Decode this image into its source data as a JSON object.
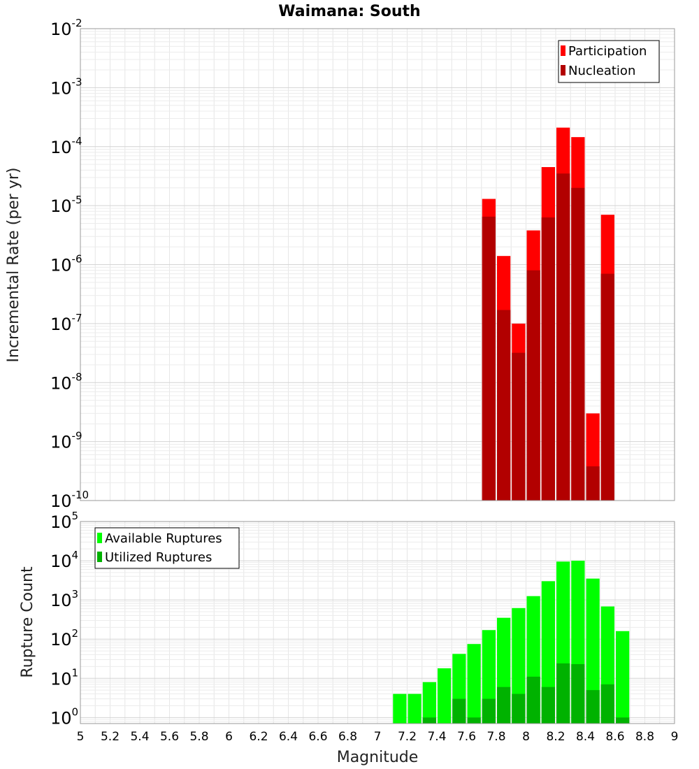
{
  "chart_data": [
    {
      "type": "bar",
      "title": "Waimana: South",
      "xlabel": "Magnitude",
      "ylabel": "Incremental Rate (per yr)",
      "x_log": false,
      "y_log": true,
      "xlim": [
        5,
        9
      ],
      "ylim": [
        1e-10,
        0.01
      ],
      "y_ticks": [
        {
          "base": "10",
          "exp": "-2"
        },
        {
          "base": "10",
          "exp": "-3"
        },
        {
          "base": "10",
          "exp": "-4"
        },
        {
          "base": "10",
          "exp": "-5"
        },
        {
          "base": "10",
          "exp": "-6"
        },
        {
          "base": "10",
          "exp": "-7"
        },
        {
          "base": "10",
          "exp": "-8"
        },
        {
          "base": "10",
          "exp": "-9"
        },
        {
          "base": "10",
          "exp": "-10"
        }
      ],
      "grid": true,
      "legend_position": "top-right",
      "bin_width": 0.1,
      "x": [
        7.75,
        7.85,
        7.95,
        8.05,
        8.15,
        8.25,
        8.35,
        8.45,
        8.55
      ],
      "series": [
        {
          "name": "Participation",
          "color": "#ff0000",
          "values": [
            1.3e-05,
            1.4e-06,
            1e-07,
            3.8e-06,
            4.5e-05,
            0.00021,
            0.000145,
            3e-09,
            7e-06
          ]
        },
        {
          "name": "Nucleation",
          "color": "#b20000",
          "values": [
            6.5e-06,
            1.7e-07,
            3.2e-08,
            8e-07,
            6.3e-06,
            3.5e-05,
            2e-05,
            3.8e-10,
            7e-07
          ]
        }
      ]
    },
    {
      "type": "bar",
      "xlabel": "Magnitude",
      "ylabel": "Rupture Count",
      "y_log": true,
      "xlim": [
        5,
        9
      ],
      "ylim": [
        0.7,
        100000.0
      ],
      "x_ticks": [
        "5",
        "5.2",
        "5.4",
        "5.6",
        "5.8",
        "6",
        "6.2",
        "6.4",
        "6.6",
        "6.8",
        "7",
        "7.2",
        "7.4",
        "7.6",
        "7.8",
        "8",
        "8.2",
        "8.4",
        "8.6",
        "8.8",
        "9"
      ],
      "y_ticks": [
        {
          "base": "10",
          "exp": "5"
        },
        {
          "base": "10",
          "exp": "4"
        },
        {
          "base": "10",
          "exp": "3"
        },
        {
          "base": "10",
          "exp": "2"
        },
        {
          "base": "10",
          "exp": "1"
        },
        {
          "base": "10",
          "exp": "0"
        }
      ],
      "grid": true,
      "legend_position": "top-left",
      "bin_width": 0.1,
      "x": [
        7.15,
        7.25,
        7.35,
        7.45,
        7.55,
        7.65,
        7.75,
        7.85,
        7.95,
        8.05,
        8.15,
        8.25,
        8.35,
        8.45,
        8.55,
        8.65
      ],
      "series": [
        {
          "name": "Available Ruptures",
          "color": "#00ff00",
          "values": [
            4,
            4,
            8,
            18,
            42,
            75,
            170,
            350,
            620,
            1250,
            3000,
            9500,
            10000,
            3500,
            680,
            160
          ]
        },
        {
          "name": "Utilized Ruptures",
          "color": "#00b200",
          "values": [
            0,
            0,
            1,
            0,
            3,
            1,
            3,
            6,
            4,
            11,
            6,
            24,
            23,
            5,
            7,
            1
          ]
        }
      ]
    }
  ]
}
